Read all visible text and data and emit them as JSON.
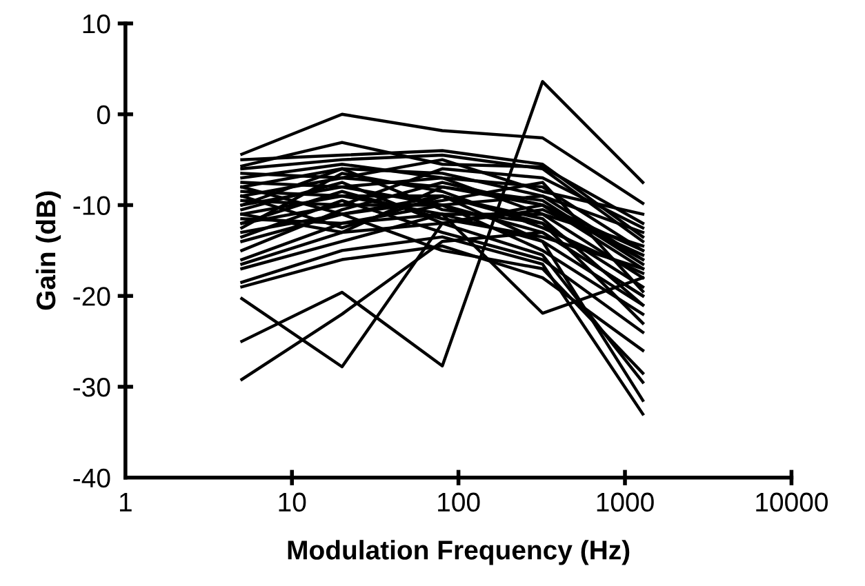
{
  "chart_data": {
    "type": "line",
    "xlabel": "Modulation Frequency (Hz)",
    "ylabel": "Gain (dB)",
    "log": "x",
    "xlim": [
      1,
      10000
    ],
    "xticks": [
      1,
      10,
      100,
      1000,
      10000
    ],
    "ylim": [
      -40,
      10
    ],
    "yticks": [
      -40,
      -30,
      -20,
      -10,
      0,
      10
    ],
    "grid": false,
    "legend": false,
    "marker": "none",
    "line_style": "solid",
    "x": [
      5,
      20,
      80,
      320,
      1280
    ],
    "series": [
      {
        "color": "#000000",
        "values": [
          -4.4,
          0,
          -1.8,
          -2.6,
          -9.8
        ]
      },
      {
        "color": "#000000",
        "values": [
          -5.7,
          -3.1,
          -5.5,
          -5.8,
          -12
        ]
      },
      {
        "color": "#000000",
        "values": [
          -20.3,
          -27.8,
          -12,
          -10,
          -16
        ]
      },
      {
        "color": "#000000",
        "values": [
          -25,
          -19.6,
          -27.7,
          3.6,
          -7.5
        ]
      },
      {
        "color": "#000000",
        "values": [
          -29.2,
          -22,
          -14,
          -13,
          -20
        ]
      },
      {
        "color": "#000000",
        "values": [
          -16,
          -12,
          -11,
          -21.9,
          -18
        ]
      },
      {
        "color": "#000000",
        "values": [
          -6,
          -5,
          -4.5,
          -6,
          -14
        ]
      },
      {
        "color": "#000000",
        "values": [
          -7,
          -5.5,
          -7,
          -8,
          -15
        ]
      },
      {
        "color": "#000000",
        "values": [
          -8,
          -6,
          -6.5,
          -9,
          -16
        ]
      },
      {
        "color": "#000000",
        "values": [
          -9,
          -7,
          -8,
          -10,
          -17
        ]
      },
      {
        "color": "#000000",
        "values": [
          -10,
          -8,
          -7,
          -11,
          -18
        ]
      },
      {
        "color": "#000000",
        "values": [
          -11,
          -9,
          -9,
          -12,
          -19
        ]
      },
      {
        "color": "#000000",
        "values": [
          -12,
          -10,
          -10,
          -13,
          -20
        ]
      },
      {
        "color": "#000000",
        "values": [
          -13,
          -11,
          -9,
          -14,
          -21
        ]
      },
      {
        "color": "#000000",
        "values": [
          -7.5,
          -8,
          -10,
          -9,
          -13
        ]
      },
      {
        "color": "#000000",
        "values": [
          -8.5,
          -9,
          -11,
          -11,
          -14.5
        ]
      },
      {
        "color": "#000000",
        "values": [
          -10.5,
          -7.5,
          -12,
          -10.5,
          -15.5
        ]
      },
      {
        "color": "#000000",
        "values": [
          -12.5,
          -6.5,
          -8.5,
          -12.5,
          -17.5
        ]
      },
      {
        "color": "#000000",
        "values": [
          -9.5,
          -10,
          -6,
          -7,
          -12.5
        ]
      },
      {
        "color": "#000000",
        "values": [
          -11.5,
          -12,
          -10,
          -15,
          -22
        ]
      },
      {
        "color": "#000000",
        "values": [
          -13.5,
          -9.5,
          -13,
          -16,
          -24
        ]
      },
      {
        "color": "#000000",
        "values": [
          -14,
          -11,
          -15,
          -17,
          -28.5
        ]
      },
      {
        "color": "#000000",
        "values": [
          -16.5,
          -13,
          -12,
          -15.5,
          -29.5
        ]
      },
      {
        "color": "#000000",
        "values": [
          -17,
          -14,
          -11,
          -14,
          -31.5
        ]
      },
      {
        "color": "#000000",
        "values": [
          -18.5,
          -15,
          -13.5,
          -16.5,
          -33
        ]
      },
      {
        "color": "#000000",
        "values": [
          -19,
          -16,
          -14.5,
          -18,
          -26
        ]
      },
      {
        "color": "#000000",
        "values": [
          -6.5,
          -7,
          -5,
          -8.5,
          -11
        ]
      },
      {
        "color": "#000000",
        "values": [
          -8,
          -11,
          -9.5,
          -7.5,
          -19.5
        ]
      },
      {
        "color": "#000000",
        "values": [
          -10,
          -6,
          -10.5,
          -12,
          -23
        ]
      },
      {
        "color": "#000000",
        "values": [
          -11,
          -13,
          -8,
          -9.5,
          -16.5
        ]
      },
      {
        "color": "#000000",
        "values": [
          -12,
          -8.5,
          -11.5,
          -13.5,
          -17
        ]
      },
      {
        "color": "#000000",
        "values": [
          -9,
          -12.5,
          -9,
          -11.5,
          -21
        ]
      },
      {
        "color": "#000000",
        "values": [
          -15,
          -10.5,
          -7.5,
          -10,
          -15
        ]
      },
      {
        "color": "#000000",
        "values": [
          -5,
          -4.5,
          -4,
          -5.5,
          -13.5
        ]
      }
    ]
  }
}
